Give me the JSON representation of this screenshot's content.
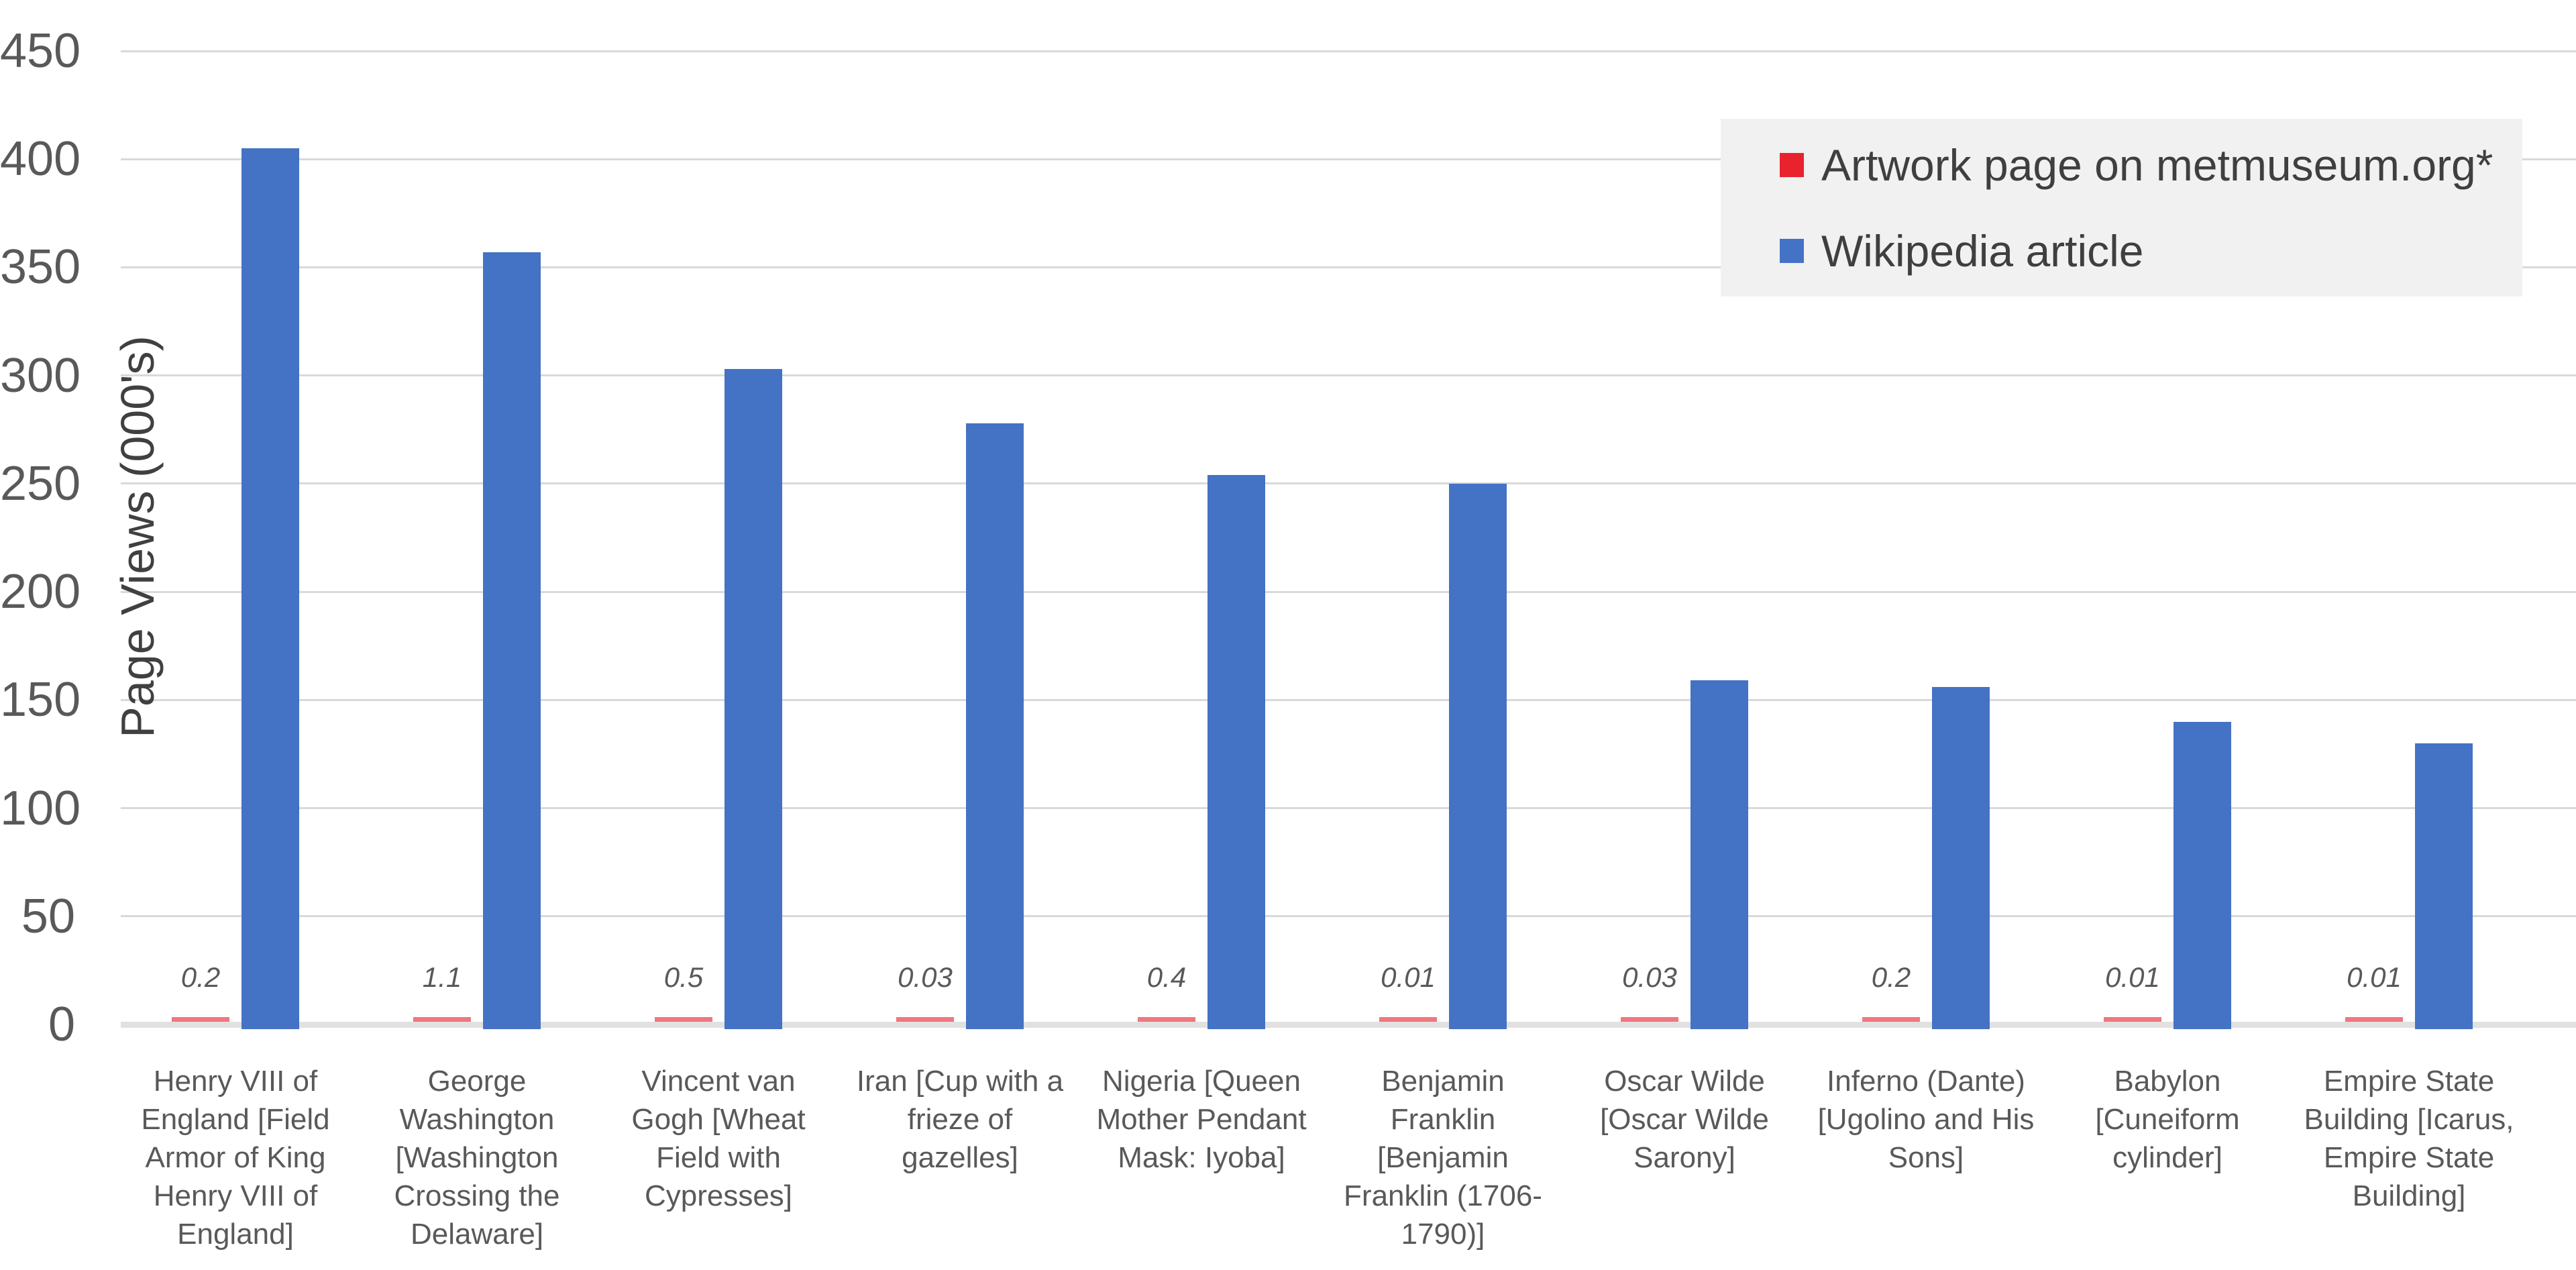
{
  "chart_data": {
    "type": "bar",
    "title": "",
    "xlabel": "",
    "ylabel": "Page Views (000's)",
    "ylim": [
      0,
      450
    ],
    "yticks": [
      0,
      50,
      100,
      150,
      200,
      250,
      300,
      350,
      400,
      450
    ],
    "grid": true,
    "legend_position": "top-right",
    "categories": [
      "Henry VIII of England [Field Armor of King Henry VIII of England]",
      "George Washington [Washington Crossing the Delaware]",
      "Vincent van Gogh [Wheat Field with Cypresses]",
      "Iran [Cup with a frieze of gazelles]",
      "Nigeria [Queen Mother Pendant Mask: Iyoba]",
      "Benjamin Franklin [Benjamin Franklin (1706-1790)]",
      "Oscar Wilde [Oscar Wilde Sarony]",
      "Inferno (Dante) [Ugolino and His Sons]",
      "Babylon [Cuneiform cylinder]",
      "Empire State Building [Icarus, Empire State Building]"
    ],
    "series": [
      {
        "name": "Artwork page on metmuseum.org*",
        "color": "#e8232e",
        "values": [
          0.2,
          1.1,
          0.5,
          0.03,
          0.4,
          0.01,
          0.03,
          0.2,
          0.01,
          0.01
        ],
        "data_labels": [
          "0.2",
          "1.1",
          "0.5",
          "0.03",
          "0.4",
          "0.01",
          "0.03",
          "0.2",
          "0.01",
          "0.01"
        ]
      },
      {
        "name": "Wikipedia article",
        "color": "#4472c4",
        "values": [
          405,
          357,
          303,
          278,
          254,
          250,
          159,
          156,
          140,
          130
        ],
        "data_labels": []
      }
    ]
  },
  "colors": {
    "background": "#ffffff",
    "gridline": "#d9d9d9",
    "axis_line": "#e1e1e1",
    "tick_text": "#595959",
    "category_text": "#595959",
    "data_label_text": "#595959",
    "axis_title_text": "#404040",
    "legend_text": "#3f3f3f",
    "legend_background": "#f1f1f1"
  }
}
